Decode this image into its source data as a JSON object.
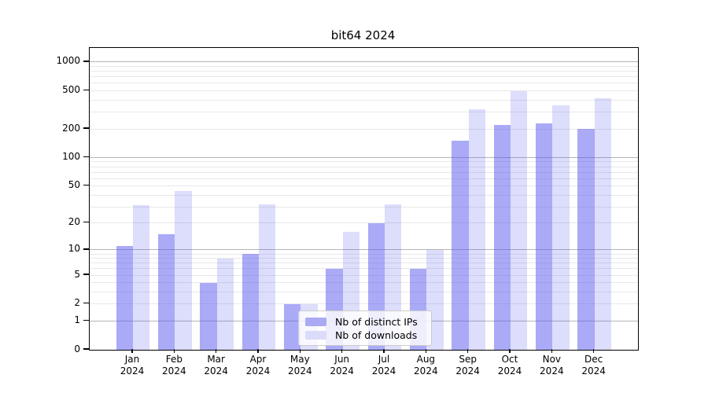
{
  "figure": {
    "title": "bit64 2024"
  },
  "chart_data": {
    "type": "bar",
    "title": "bit64 2024",
    "categories": [
      "Jan 2024",
      "Feb 2024",
      "Mar 2024",
      "Apr 2024",
      "May 2024",
      "Jun 2024",
      "Jul 2024",
      "Aug 2024",
      "Sep 2024",
      "Oct 2024",
      "Nov 2024",
      "Dec 2024"
    ],
    "series": [
      {
        "name": "Nb of distinct IPs",
        "color": "#aaaaf4",
        "fill": "rgba(85,85,238,0.50)",
        "values": [
          11,
          15,
          4,
          9,
          2,
          6,
          20,
          6,
          150,
          220,
          230,
          200
        ]
      },
      {
        "name": "Nb of downloads",
        "color": "#dbdbfa",
        "fill": "rgba(85,85,238,0.20)",
        "values": [
          31,
          44,
          8,
          32,
          2,
          16,
          32,
          10,
          320,
          500,
          350,
          420
        ]
      }
    ],
    "xlabel": "",
    "ylabel": "",
    "yscale": "log10(value+1)",
    "yticks": [
      0,
      1,
      2,
      5,
      10,
      20,
      50,
      100,
      200,
      500,
      1000
    ],
    "ylim": [
      0,
      1430
    ],
    "grid": "both",
    "gridline_major_color": "#b5b5b5",
    "gridline_minor_color": "#e8e8e8",
    "legend_position": "lower center-right"
  }
}
